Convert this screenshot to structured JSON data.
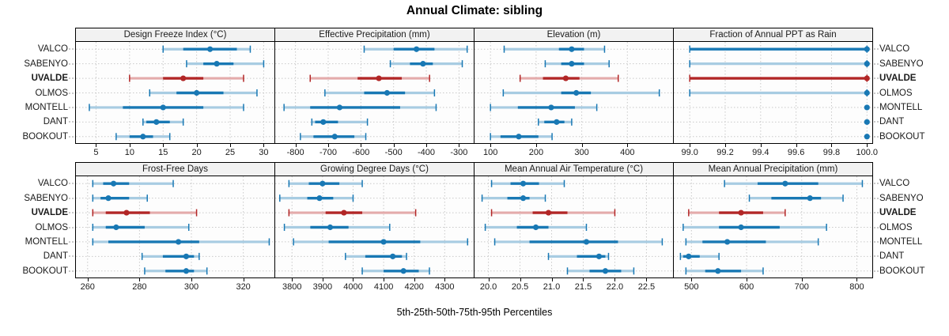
{
  "title": "Annual Climate: sibling",
  "caption": "5th-25th-50th-75th-95th Percentiles",
  "colors": {
    "blue": "#1878b4",
    "blue_light": "#a8cce2",
    "red": "#b22626",
    "red_light": "#e4abab",
    "grid": "#c9c9c9",
    "strip_bg": "#f2f2f2",
    "border": "#000000"
  },
  "chart_data": {
    "type": "dotplot-percentiles",
    "percentile_order": [
      "p5",
      "p25",
      "p50",
      "p75",
      "p95"
    ],
    "sites": [
      "VALCO",
      "SABENYO",
      "UVALDE",
      "OLMOS",
      "MONTELL",
      "DANT",
      "BOOKOUT"
    ],
    "highlight_site": "UVALDE",
    "legend": "5th-25th-50th-75th-95th Percentiles",
    "panels": [
      {
        "title": "Design Freeze Index (°C)",
        "xlim": [
          2,
          31.6
        ],
        "ticks": [
          5,
          10,
          15,
          20,
          25,
          30
        ],
        "tick_labels": [
          "5",
          "10",
          "15",
          "20",
          "25",
          "30"
        ],
        "values": {
          "VALCO": [
            15,
            18,
            22,
            26,
            28
          ],
          "SABENYO": [
            18.5,
            21,
            23,
            25.5,
            30
          ],
          "UVALDE": [
            10,
            15,
            18,
            21,
            27
          ],
          "OLMOS": [
            13,
            17,
            20,
            24,
            29
          ],
          "MONTELL": [
            4,
            9,
            15,
            21,
            27
          ],
          "DANT": [
            12,
            12.5,
            14,
            16,
            18
          ],
          "BOOKOUT": [
            8,
            10,
            12,
            13.5,
            16
          ]
        }
      },
      {
        "title": "Effective Precipitation (mm)",
        "xlim": [
          -862,
          -255
        ],
        "ticks": [
          -800,
          -700,
          -600,
          -500,
          -400,
          -300
        ],
        "tick_labels": [
          "-800",
          "-700",
          "-600",
          "-500",
          "-400",
          "-300"
        ],
        "values": {
          "VALCO": [
            -590,
            -500,
            -430,
            -375,
            -275
          ],
          "SABENYO": [
            -510,
            -450,
            -410,
            -380,
            -290
          ],
          "UVALDE": [
            -755,
            -610,
            -545,
            -475,
            -390
          ],
          "OLMOS": [
            -710,
            -590,
            -520,
            -465,
            -375
          ],
          "MONTELL": [
            -835,
            -755,
            -665,
            -480,
            -370
          ],
          "DANT": [
            -750,
            -740,
            -715,
            -670,
            -580
          ],
          "BOOKOUT": [
            -785,
            -745,
            -680,
            -620,
            -585
          ]
        }
      },
      {
        "title": "Elevation (m)",
        "xlim": [
          65,
          500
        ],
        "ticks": [
          100,
          200,
          300,
          400
        ],
        "tick_labels": [
          "100",
          "200",
          "300",
          "400"
        ],
        "values": {
          "VALCO": [
            130,
            250,
            278,
            305,
            350
          ],
          "SABENYO": [
            220,
            255,
            278,
            305,
            360
          ],
          "UVALDE": [
            165,
            215,
            265,
            295,
            380
          ],
          "OLMOS": [
            128,
            255,
            288,
            320,
            470
          ],
          "MONTELL": [
            100,
            160,
            233,
            285,
            333
          ],
          "DANT": [
            205,
            218,
            245,
            262,
            278
          ],
          "BOOKOUT": [
            100,
            122,
            162,
            205,
            235
          ]
        }
      },
      {
        "title": "Fraction of Annual PPT as Rain",
        "xlim": [
          98.91,
          100.03
        ],
        "ticks": [
          99.0,
          99.2,
          99.4,
          99.6,
          99.8,
          100.0
        ],
        "tick_labels": [
          "99.0",
          "99.2",
          "99.4",
          "99.6",
          "99.8",
          "100.0"
        ],
        "values": {
          "VALCO": [
            99.0,
            99.0,
            100.0,
            100.0,
            100.0
          ],
          "SABENYO": [
            99.0,
            100.0,
            100.0,
            100.0,
            100.0
          ],
          "UVALDE": [
            99.0,
            99.0,
            100.0,
            100.0,
            100.0
          ],
          "OLMOS": [
            99.0,
            100.0,
            100.0,
            100.0,
            100.0
          ],
          "MONTELL": [
            100.0,
            100.0,
            100.0,
            100.0,
            100.0
          ],
          "DANT": [
            100.0,
            100.0,
            100.0,
            100.0,
            100.0
          ],
          "BOOKOUT": [
            100.0,
            100.0,
            100.0,
            100.0,
            100.0
          ]
        }
      },
      {
        "title": "Frost-Free Days",
        "xlim": [
          255.5,
          332
        ],
        "ticks": [
          260,
          280,
          300,
          320
        ],
        "tick_labels": [
          "260",
          "280",
          "300",
          "320"
        ],
        "values": {
          "VALCO": [
            262,
            266,
            270,
            276,
            293
          ],
          "SABENYO": [
            262,
            265,
            268,
            276,
            283
          ],
          "UVALDE": [
            262,
            267,
            275,
            284,
            302
          ],
          "OLMOS": [
            262,
            267,
            271,
            282,
            299
          ],
          "MONTELL": [
            262,
            268,
            295,
            303,
            330
          ],
          "DANT": [
            281,
            289,
            298,
            301,
            303
          ],
          "BOOKOUT": [
            282,
            290,
            298,
            301,
            306
          ]
        }
      },
      {
        "title": "Growing Degree Days (°C)",
        "xlim": [
          3745,
          4395
        ],
        "ticks": [
          3800,
          3900,
          4000,
          4100,
          4200,
          4300
        ],
        "tick_labels": [
          "3800",
          "3900",
          "4000",
          "4100",
          "4200",
          "4300"
        ],
        "values": {
          "VALCO": [
            3790,
            3855,
            3900,
            3955,
            4030
          ],
          "SABENYO": [
            3760,
            3850,
            3890,
            3935,
            4000
          ],
          "UVALDE": [
            3790,
            3910,
            3970,
            4030,
            4205
          ],
          "OLMOS": [
            3775,
            3860,
            3925,
            3985,
            4120
          ],
          "MONTELL": [
            3805,
            3920,
            4100,
            4220,
            4375
          ],
          "DANT": [
            3975,
            4040,
            4130,
            4160,
            4175
          ],
          "BOOKOUT": [
            4030,
            4100,
            4165,
            4215,
            4250
          ]
        }
      },
      {
        "title": "Mean Annual Air Temperature (°C)",
        "xlim": [
          19.78,
          22.92
        ],
        "ticks": [
          20.0,
          20.5,
          21.0,
          21.5,
          22.0,
          22.5
        ],
        "tick_labels": [
          "20.0",
          "20.5",
          "21.0",
          "21.5",
          "22.0",
          "22.5"
        ],
        "values": {
          "VALCO": [
            20.05,
            20.35,
            20.55,
            20.8,
            21.2
          ],
          "SABENYO": [
            19.9,
            20.3,
            20.55,
            20.65,
            20.9
          ],
          "UVALDE": [
            20.05,
            20.7,
            20.95,
            21.25,
            22.0
          ],
          "OLMOS": [
            19.95,
            20.45,
            20.75,
            20.95,
            21.55
          ],
          "MONTELL": [
            20.1,
            20.65,
            21.55,
            22.05,
            22.75
          ],
          "DANT": [
            20.95,
            21.4,
            21.75,
            21.85,
            21.9
          ],
          "BOOKOUT": [
            21.25,
            21.6,
            21.85,
            22.1,
            22.3
          ]
        }
      },
      {
        "title": "Mean Annual Precipitation (mm)",
        "xlim": [
          468,
          828
        ],
        "ticks": [
          500,
          600,
          700,
          800
        ],
        "tick_labels": [
          "500",
          "600",
          "700",
          "800"
        ],
        "values": {
          "VALCO": [
            560,
            620,
            670,
            730,
            810
          ],
          "SABENYO": [
            605,
            645,
            715,
            735,
            775
          ],
          "UVALDE": [
            495,
            550,
            590,
            630,
            670
          ],
          "OLMOS": [
            485,
            550,
            590,
            660,
            745
          ],
          "MONTELL": [
            490,
            520,
            565,
            635,
            730
          ],
          "DANT": [
            480,
            485,
            495,
            515,
            550
          ],
          "BOOKOUT": [
            490,
            525,
            548,
            590,
            630
          ]
        }
      }
    ]
  }
}
